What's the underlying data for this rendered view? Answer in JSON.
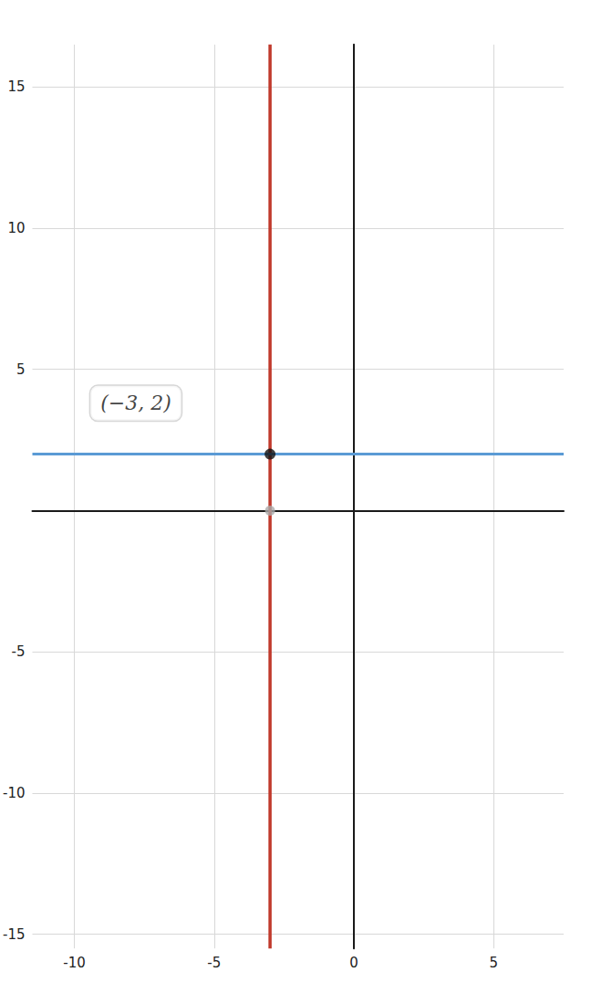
{
  "chart_data": {
    "type": "line",
    "xlim": [
      -11.5,
      7.5
    ],
    "ylim": [
      -15.5,
      16.5
    ],
    "xticks": [
      -10,
      -5,
      0,
      5
    ],
    "yticks": [
      -15,
      -10,
      -5,
      5,
      10,
      15
    ],
    "grid": true,
    "lines": [
      {
        "x": -3,
        "color": "#c0392b"
      },
      {
        "y": 2,
        "color": "#5b9bd5"
      }
    ],
    "points": [
      {
        "x": -3,
        "y": 2,
        "color": "#111111"
      },
      {
        "x": -3,
        "y": 0,
        "color": "#aaaaaa"
      }
    ],
    "annotations": [
      {
        "text": "(−3, 2)",
        "x": -7.8,
        "y": 3.8
      }
    ]
  }
}
